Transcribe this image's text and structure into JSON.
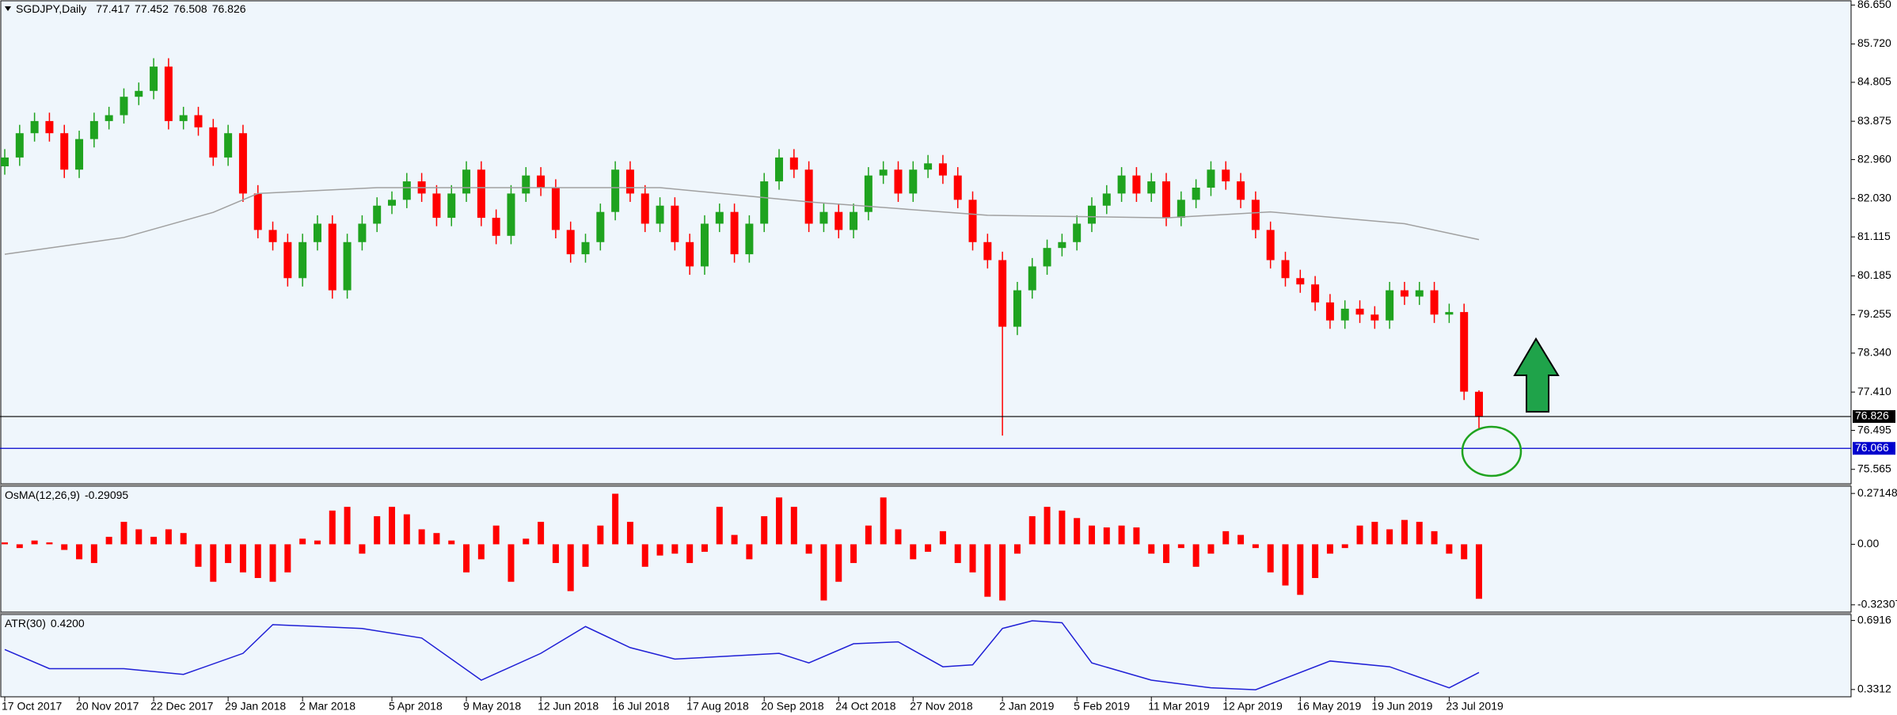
{
  "chart_data": [
    {
      "type": "candlestick",
      "title": "SGDJPY,Daily",
      "up_color": "#1fa31f",
      "down_color": "#ff0000",
      "candles": [
        [
          82.8,
          83.21,
          82.6,
          83.01
        ],
        [
          83.01,
          83.79,
          82.81,
          83.59
        ],
        [
          83.59,
          84.08,
          83.39,
          83.88
        ],
        [
          83.88,
          84.08,
          83.39,
          83.59
        ],
        [
          83.59,
          83.79,
          82.52,
          82.72
        ],
        [
          82.72,
          83.65,
          82.52,
          83.45
        ],
        [
          83.45,
          84.08,
          83.25,
          83.88
        ],
        [
          83.88,
          84.22,
          83.68,
          84.02
        ],
        [
          84.02,
          84.66,
          83.82,
          84.46
        ],
        [
          84.46,
          84.8,
          84.26,
          84.6
        ],
        [
          84.6,
          85.38,
          84.4,
          85.18
        ],
        [
          85.18,
          85.38,
          83.68,
          83.88
        ],
        [
          83.88,
          84.22,
          83.68,
          84.02
        ],
        [
          84.02,
          84.22,
          83.53,
          83.73
        ],
        [
          83.73,
          83.93,
          82.81,
          83.01
        ],
        [
          83.01,
          83.79,
          82.81,
          83.59
        ],
        [
          83.59,
          83.79,
          81.95,
          82.15
        ],
        [
          82.15,
          82.35,
          81.08,
          81.28
        ],
        [
          81.28,
          81.48,
          80.79,
          80.99
        ],
        [
          80.99,
          81.19,
          79.93,
          80.13
        ],
        [
          80.13,
          81.19,
          79.93,
          80.99
        ],
        [
          80.99,
          81.63,
          80.79,
          81.43
        ],
        [
          81.43,
          81.63,
          79.64,
          79.84
        ],
        [
          79.84,
          81.19,
          79.64,
          80.99
        ],
        [
          80.99,
          81.63,
          80.79,
          81.43
        ],
        [
          81.43,
          82.06,
          81.23,
          81.86
        ],
        [
          81.86,
          82.2,
          81.66,
          82.0
        ],
        [
          82.0,
          82.64,
          81.8,
          82.44
        ],
        [
          82.44,
          82.64,
          81.95,
          82.15
        ],
        [
          82.15,
          82.35,
          81.37,
          81.57
        ],
        [
          81.57,
          82.35,
          81.37,
          82.15
        ],
        [
          82.15,
          82.92,
          81.95,
          82.72
        ],
        [
          82.72,
          82.92,
          81.37,
          81.57
        ],
        [
          81.57,
          81.77,
          80.94,
          81.14
        ],
        [
          81.14,
          82.35,
          80.94,
          82.15
        ],
        [
          82.15,
          82.78,
          81.95,
          82.58
        ],
        [
          82.58,
          82.78,
          82.09,
          82.29
        ],
        [
          82.29,
          82.49,
          81.08,
          81.28
        ],
        [
          81.28,
          81.48,
          80.5,
          80.7
        ],
        [
          80.7,
          81.19,
          80.5,
          80.99
        ],
        [
          80.99,
          81.91,
          80.79,
          81.71
        ],
        [
          81.71,
          82.92,
          81.51,
          82.72
        ],
        [
          82.72,
          82.92,
          81.95,
          82.15
        ],
        [
          82.15,
          82.35,
          81.23,
          81.43
        ],
        [
          81.43,
          82.06,
          81.23,
          81.86
        ],
        [
          81.86,
          82.06,
          80.79,
          80.99
        ],
        [
          80.99,
          81.19,
          80.21,
          80.41
        ],
        [
          80.41,
          81.63,
          80.21,
          81.43
        ],
        [
          81.43,
          81.91,
          81.23,
          81.71
        ],
        [
          81.71,
          81.91,
          80.5,
          80.7
        ],
        [
          80.7,
          81.63,
          80.5,
          81.43
        ],
        [
          81.43,
          82.64,
          81.23,
          82.44
        ],
        [
          82.44,
          83.21,
          82.24,
          83.01
        ],
        [
          83.01,
          83.21,
          82.52,
          82.72
        ],
        [
          82.72,
          82.92,
          81.23,
          81.43
        ],
        [
          81.43,
          81.91,
          81.23,
          81.71
        ],
        [
          81.71,
          81.91,
          81.08,
          81.28
        ],
        [
          81.28,
          81.91,
          81.08,
          81.71
        ],
        [
          81.71,
          82.78,
          81.51,
          82.58
        ],
        [
          82.58,
          82.92,
          82.38,
          82.72
        ],
        [
          82.72,
          82.92,
          81.95,
          82.15
        ],
        [
          82.15,
          82.92,
          81.95,
          82.72
        ],
        [
          82.72,
          83.07,
          82.52,
          82.87
        ],
        [
          82.87,
          83.07,
          82.38,
          82.58
        ],
        [
          82.58,
          82.78,
          81.8,
          82.0
        ],
        [
          82.0,
          82.2,
          80.79,
          80.99
        ],
        [
          80.99,
          81.19,
          80.36,
          80.56
        ],
        [
          80.56,
          80.76,
          76.37,
          78.97
        ],
        [
          78.97,
          80.04,
          78.77,
          79.84
        ],
        [
          79.84,
          80.61,
          79.64,
          80.41
        ],
        [
          80.41,
          81.05,
          80.21,
          80.85
        ],
        [
          80.85,
          81.19,
          80.65,
          80.99
        ],
        [
          80.99,
          81.63,
          80.79,
          81.43
        ],
        [
          81.43,
          82.06,
          81.23,
          81.86
        ],
        [
          81.86,
          82.35,
          81.66,
          82.15
        ],
        [
          82.15,
          82.78,
          81.95,
          82.58
        ],
        [
          82.58,
          82.78,
          81.95,
          82.15
        ],
        [
          82.15,
          82.64,
          81.95,
          82.44
        ],
        [
          82.44,
          82.64,
          81.37,
          81.57
        ],
        [
          81.57,
          82.2,
          81.37,
          82.0
        ],
        [
          82.0,
          82.49,
          81.8,
          82.29
        ],
        [
          82.29,
          82.92,
          82.09,
          82.72
        ],
        [
          82.72,
          82.92,
          82.24,
          82.44
        ],
        [
          82.44,
          82.64,
          81.8,
          82.0
        ],
        [
          82.0,
          82.2,
          81.08,
          81.28
        ],
        [
          81.28,
          81.48,
          80.36,
          80.56
        ],
        [
          80.56,
          80.76,
          79.93,
          80.13
        ],
        [
          80.13,
          80.33,
          79.78,
          79.98
        ],
        [
          79.98,
          80.18,
          79.35,
          79.55
        ],
        [
          79.55,
          79.75,
          78.92,
          79.12
        ],
        [
          79.12,
          79.6,
          78.92,
          79.4
        ],
        [
          79.4,
          79.6,
          79.06,
          79.26
        ],
        [
          79.26,
          79.46,
          78.92,
          79.12
        ],
        [
          79.12,
          80.04,
          78.92,
          79.84
        ],
        [
          79.84,
          80.04,
          79.49,
          79.69
        ],
        [
          79.69,
          80.04,
          79.49,
          79.84
        ],
        [
          79.84,
          80.04,
          79.06,
          79.26
        ],
        [
          79.26,
          79.52,
          79.06,
          79.32
        ],
        [
          79.32,
          79.52,
          77.22,
          77.42
        ],
        [
          77.417,
          77.452,
          76.508,
          76.826
        ]
      ],
      "ma": {
        "color": "#a0a0a0",
        "x": [
          0,
          8,
          14,
          17,
          25,
          44,
          54,
          66,
          78,
          85,
          94,
          99
        ],
        "values": [
          80.7,
          81.1,
          81.7,
          82.15,
          82.29,
          82.29,
          81.95,
          81.63,
          81.57,
          81.71,
          81.43,
          81.05
        ]
      },
      "hlines": [
        {
          "value": 76.826,
          "color": "#000000"
        },
        {
          "value": 76.066,
          "color": "#0000cd"
        }
      ],
      "ylim": [
        75.22,
        86.77
      ],
      "yticks": [
        {
          "value": 86.65,
          "label": "86.650"
        },
        {
          "value": 85.72,
          "label": "85.720"
        },
        84.805,
        83.875,
        {
          "value": 82.96,
          "label": "82.960"
        },
        {
          "value": 82.03,
          "label": "82.030"
        },
        81.115,
        80.185,
        79.255,
        {
          "value": 78.34,
          "label": "78.340"
        },
        {
          "value": 77.41,
          "label": "77.410"
        },
        76.495,
        75.565
      ],
      "xticks": [
        {
          "value": 0,
          "label": "17 Oct 2017"
        },
        {
          "value": 5,
          "label": "20 Nov 2017"
        },
        {
          "value": 10,
          "label": "22 Dec 2017"
        },
        {
          "value": 15,
          "label": "29 Jan 2018"
        },
        {
          "value": 20,
          "label": "2 Mar 2018"
        },
        {
          "value": 26,
          "label": "5 Apr 2018"
        },
        {
          "value": 31,
          "label": "9 May 2018"
        },
        {
          "value": 36,
          "label": "12 Jun 2018"
        },
        {
          "value": 41,
          "label": "16 Jul 2018"
        },
        {
          "value": 46,
          "label": "17 Aug 2018"
        },
        {
          "value": 51,
          "label": "20 Sep 2018"
        },
        {
          "value": 56,
          "label": "24 Oct 2018"
        },
        {
          "value": 61,
          "label": "27 Nov 2018"
        },
        {
          "value": 67,
          "label": "2 Jan 2019"
        },
        {
          "value": 72,
          "label": "5 Feb 2019"
        },
        {
          "value": 77,
          "label": "11 Mar 2019"
        },
        {
          "value": 82,
          "label": "12 Apr 2019"
        },
        {
          "value": 87,
          "label": "16 May 2019"
        },
        {
          "value": 92,
          "label": "19 Jun 2019"
        },
        {
          "value": 97,
          "label": "23 Jul 2019"
        }
      ]
    },
    {
      "type": "bar",
      "title": "OsMA(12,26,9)",
      "color": "#ff0000",
      "values": [
        0.01,
        -0.02,
        0.02,
        0.01,
        -0.03,
        -0.08,
        -0.1,
        0.04,
        0.12,
        0.08,
        0.04,
        0.08,
        0.06,
        -0.12,
        -0.2,
        -0.1,
        -0.15,
        -0.18,
        -0.2,
        -0.15,
        0.03,
        0.02,
        0.18,
        0.2,
        -0.05,
        0.15,
        0.2,
        0.16,
        0.08,
        0.06,
        0.02,
        -0.15,
        -0.08,
        0.1,
        -0.2,
        0.03,
        0.12,
        -0.1,
        -0.25,
        -0.12,
        0.1,
        0.27,
        0.12,
        -0.12,
        -0.06,
        -0.05,
        -0.1,
        -0.04,
        0.2,
        0.05,
        -0.08,
        0.15,
        0.25,
        0.2,
        -0.05,
        -0.3,
        -0.2,
        -0.1,
        0.1,
        0.25,
        0.08,
        -0.08,
        -0.04,
        0.07,
        -0.1,
        -0.15,
        -0.28,
        -0.3,
        -0.05,
        0.15,
        0.2,
        0.18,
        0.14,
        0.1,
        0.09,
        0.1,
        0.09,
        -0.05,
        -0.1,
        -0.02,
        -0.12,
        -0.05,
        0.07,
        0.05,
        -0.02,
        -0.15,
        -0.22,
        -0.27,
        -0.18,
        -0.05,
        -0.02,
        0.1,
        0.12,
        0.08,
        0.13,
        0.12,
        0.07,
        -0.05,
        -0.08,
        -0.29095
      ],
      "ylim": [
        -0.3618,
        0.3103
      ],
      "yticks": [
        0.27148,
        {
          "value": 0,
          "label": "0.00"
        },
        -0.32307
      ]
    },
    {
      "type": "line",
      "title": "ATR(30)",
      "color": "#1f1fd6",
      "x": [
        0,
        3,
        8,
        12,
        16,
        18,
        21,
        24,
        28,
        32,
        36,
        39,
        42,
        45,
        52,
        54,
        57,
        60,
        63,
        65,
        67,
        69,
        71,
        73,
        77,
        81,
        84,
        89,
        93,
        97,
        99
      ],
      "values": [
        0.54,
        0.44,
        0.44,
        0.41,
        0.52,
        0.67,
        0.66,
        0.65,
        0.6,
        0.38,
        0.52,
        0.66,
        0.55,
        0.49,
        0.52,
        0.47,
        0.57,
        0.58,
        0.45,
        0.46,
        0.65,
        0.69,
        0.68,
        0.47,
        0.38,
        0.34,
        0.33,
        0.48,
        0.45,
        0.34,
        0.42
      ],
      "current": {
        "value": 0.42,
        "label": "0.4200"
      },
      "ylim": [
        0.2932,
        0.7232
      ],
      "yticks": [
        0.6916,
        0.3312
      ]
    }
  ]
}
